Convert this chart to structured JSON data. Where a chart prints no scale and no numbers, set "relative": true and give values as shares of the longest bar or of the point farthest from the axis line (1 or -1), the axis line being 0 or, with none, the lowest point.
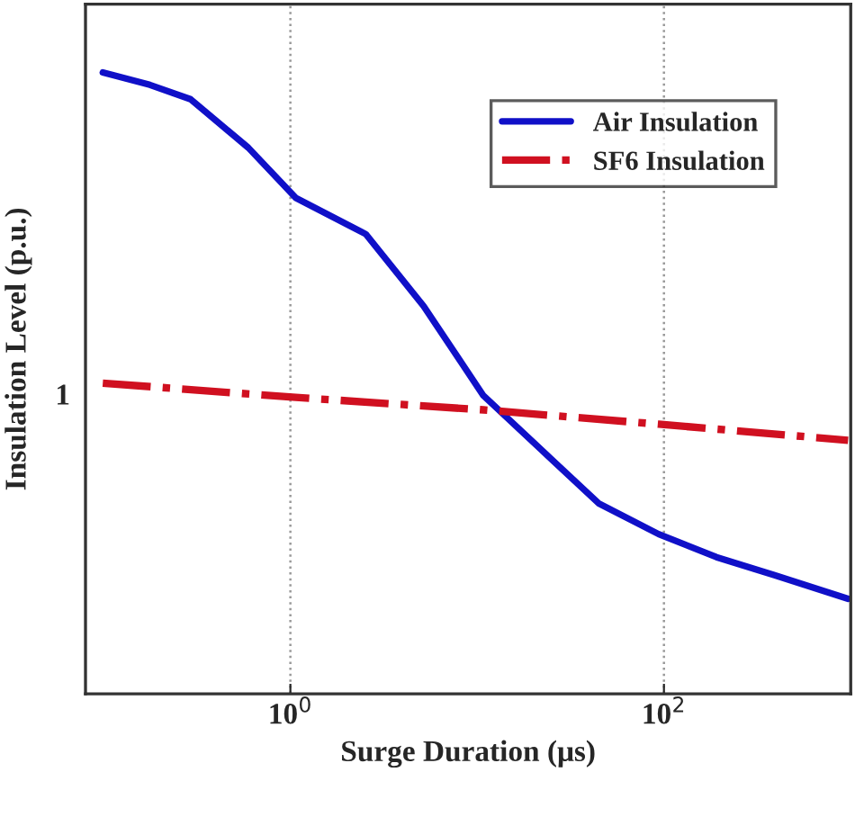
{
  "chart_data": {
    "type": "line",
    "xlabel": "Surge Duration (μs)",
    "ylabel": "Insulation Level (p.u.)",
    "relative": true,
    "log": "x",
    "xlim": [
      0.08,
      1000
    ],
    "xticks": [
      {
        "value": 1,
        "label": "10$^{0}$"
      },
      {
        "value": 100,
        "label": "10$^{2}$"
      }
    ],
    "annotations": [
      "1"
    ],
    "grid": "x",
    "legend": "top right",
    "series": [
      {
        "name": "Air Insulation",
        "color": "#1010c8",
        "line_style": "solid",
        "x": [
          0.099,
          0.177,
          0.292,
          0.595,
          1.07,
          2.53,
          5.17,
          10.8,
          22.0,
          45.0,
          93.7,
          191,
          391,
          968
        ],
        "values": [
          1.0,
          0.98,
          0.957,
          0.879,
          0.798,
          0.74,
          0.624,
          0.48,
          0.393,
          0.306,
          0.257,
          0.22,
          0.191,
          0.153
        ]
      },
      {
        "name": "SF6 Insulation",
        "color": "#d01020",
        "line_style": "dashdot",
        "x": [
          0.099,
          1.07,
          10.8,
          93.7,
          968
        ],
        "values": [
          0.5,
          0.477,
          0.457,
          0.434,
          0.408
        ]
      }
    ]
  }
}
